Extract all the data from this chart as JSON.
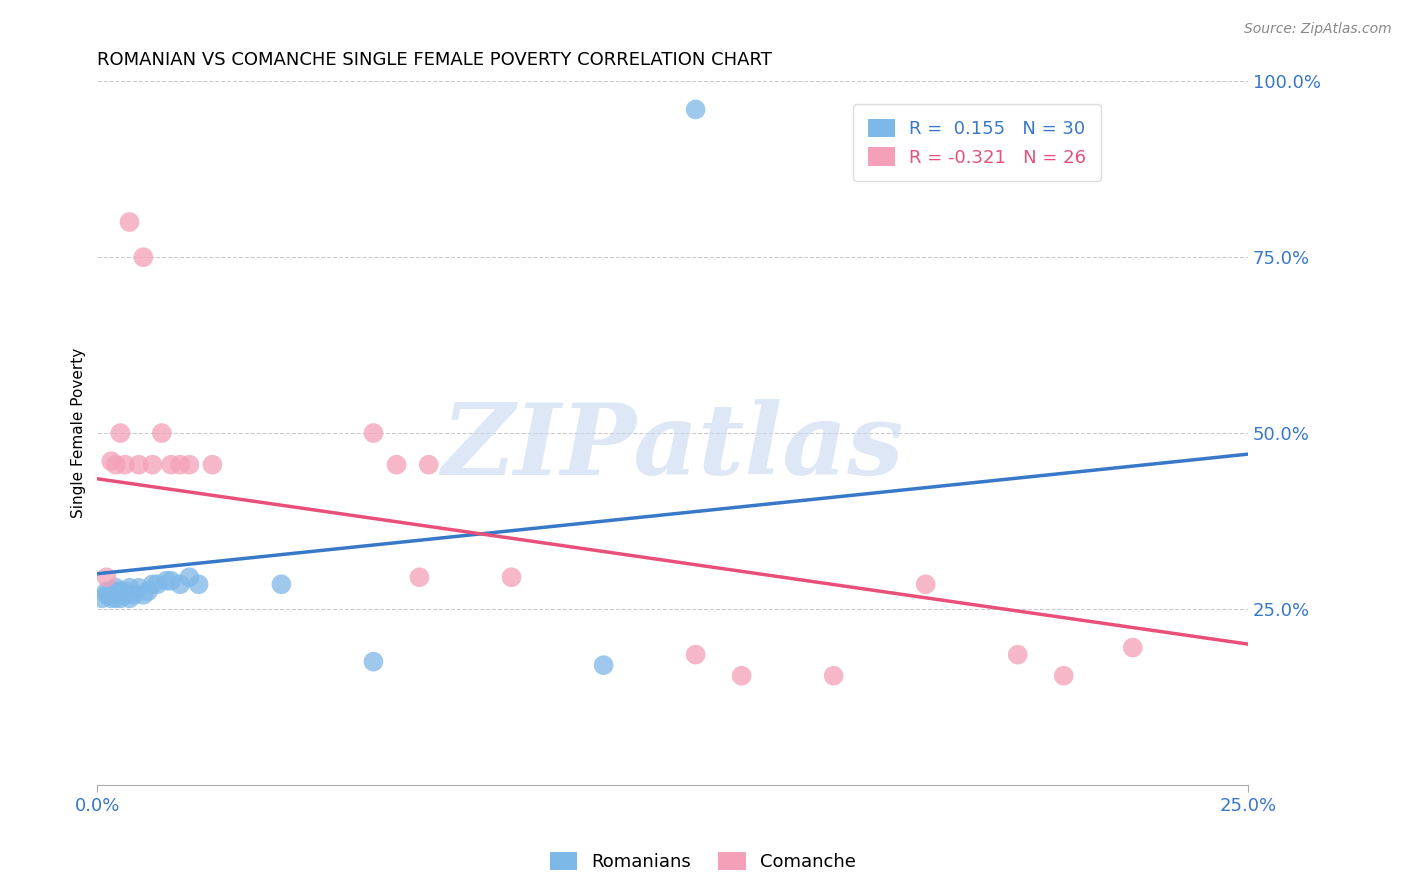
{
  "title": "ROMANIAN VS COMANCHE SINGLE FEMALE POVERTY CORRELATION CHART",
  "source": "Source: ZipAtlas.com",
  "ylabel": "Single Female Poverty",
  "xlim": [
    0.0,
    0.25
  ],
  "ylim": [
    0.0,
    1.0
  ],
  "xtick_labels": [
    "0.0%",
    "25.0%"
  ],
  "ytick_labels": [
    "25.0%",
    "50.0%",
    "75.0%",
    "100.0%"
  ],
  "ytick_vals": [
    0.25,
    0.5,
    0.75,
    1.0
  ],
  "xtick_vals": [
    0.0,
    0.25
  ],
  "blue_R": "0.155",
  "blue_N": "30",
  "pink_R": "-0.321",
  "pink_N": "26",
  "blue_color": "#7EB8E8",
  "pink_color": "#F4A0B8",
  "blue_line_color": "#3878C8",
  "pink_line_color": "#E8507A",
  "watermark_color": "#C8D8F0",
  "romanians_x": [
    0.001,
    0.002,
    0.002,
    0.003,
    0.003,
    0.003,
    0.004,
    0.004,
    0.004,
    0.005,
    0.005,
    0.006,
    0.006,
    0.007,
    0.007,
    0.008,
    0.009,
    0.01,
    0.011,
    0.012,
    0.013,
    0.015,
    0.016,
    0.018,
    0.02,
    0.022,
    0.04,
    0.06,
    0.11,
    0.13
  ],
  "romanians_y": [
    0.265,
    0.275,
    0.27,
    0.27,
    0.265,
    0.275,
    0.28,
    0.275,
    0.265,
    0.275,
    0.265,
    0.27,
    0.275,
    0.265,
    0.28,
    0.27,
    0.28,
    0.27,
    0.275,
    0.285,
    0.285,
    0.29,
    0.29,
    0.285,
    0.295,
    0.285,
    0.285,
    0.175,
    0.17,
    0.96
  ],
  "comanche_x": [
    0.002,
    0.003,
    0.004,
    0.005,
    0.006,
    0.007,
    0.009,
    0.01,
    0.012,
    0.014,
    0.016,
    0.018,
    0.02,
    0.025,
    0.06,
    0.065,
    0.07,
    0.072,
    0.09,
    0.13,
    0.14,
    0.16,
    0.18,
    0.2,
    0.21,
    0.225
  ],
  "comanche_y": [
    0.295,
    0.46,
    0.455,
    0.5,
    0.455,
    0.8,
    0.455,
    0.75,
    0.455,
    0.5,
    0.455,
    0.455,
    0.455,
    0.455,
    0.5,
    0.455,
    0.295,
    0.455,
    0.295,
    0.185,
    0.155,
    0.155,
    0.285,
    0.185,
    0.155,
    0.195
  ],
  "blue_line_x": [
    0.0,
    0.25
  ],
  "blue_line_y": [
    0.3,
    0.47
  ],
  "pink_line_x": [
    0.0,
    0.25
  ],
  "pink_line_y": [
    0.435,
    0.2
  ]
}
